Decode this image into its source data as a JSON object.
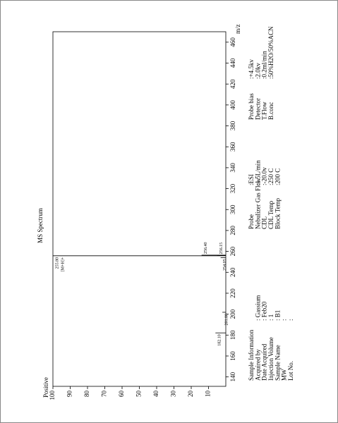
{
  "chart_data": {
    "type": "bar",
    "title": "MS Spectrum",
    "polarity": "Positive",
    "x_label": "m/z",
    "x": [
      182.1,
      201.8,
      254.05,
      255.8,
      256.15,
      256.4
    ],
    "x_labels": [
      "182.10",
      "201.80",
      "254.05",
      "255.80",
      "256.15",
      "256.40"
    ],
    "values": [
      6,
      2,
      3,
      100,
      5,
      14
    ],
    "annotations": [
      null,
      null,
      null,
      "[M+H]+",
      null,
      null
    ],
    "color": "#000000",
    "xlim": [
      131,
      470
    ],
    "xticks": [
      140,
      160,
      180,
      200,
      220,
      240,
      260,
      280,
      300,
      320,
      340,
      360,
      380,
      400,
      420,
      440,
      460
    ],
    "ylim": [
      0,
      100
    ],
    "yticks": [
      10,
      20,
      30,
      40,
      50,
      60,
      70,
      80,
      90,
      100
    ]
  },
  "sample_information": {
    "title": "Sample Information",
    "rows": [
      [
        "Acquired by",
        ": Gassium"
      ],
      [
        "Date Acquired",
        ": Feb20"
      ],
      [
        "Injection Volume",
        ": 1"
      ],
      [
        "Sample Name",
        ": B1"
      ],
      [
        "MW",
        ":"
      ],
      [
        "Lot No.",
        ":"
      ]
    ]
  },
  "instrument": {
    "rows": [
      [
        "Probe",
        ":ESI"
      ],
      [
        "Nebulizer Gas Flow",
        ":1.5L/min"
      ],
      [
        "CDL",
        ":-20.0v"
      ],
      [
        "CDL Temp",
        ":250 C"
      ],
      [
        "Block Temp",
        ":200 C"
      ]
    ]
  },
  "detector": {
    "rows": [
      [
        "Probe bias",
        ":+4.5kv"
      ],
      [
        "Detector",
        ":2.0kv"
      ],
      [
        "T.Flow",
        ":0.2ml/min"
      ],
      [
        "B.conc",
        ":50%H2O/50%ACN"
      ]
    ]
  }
}
